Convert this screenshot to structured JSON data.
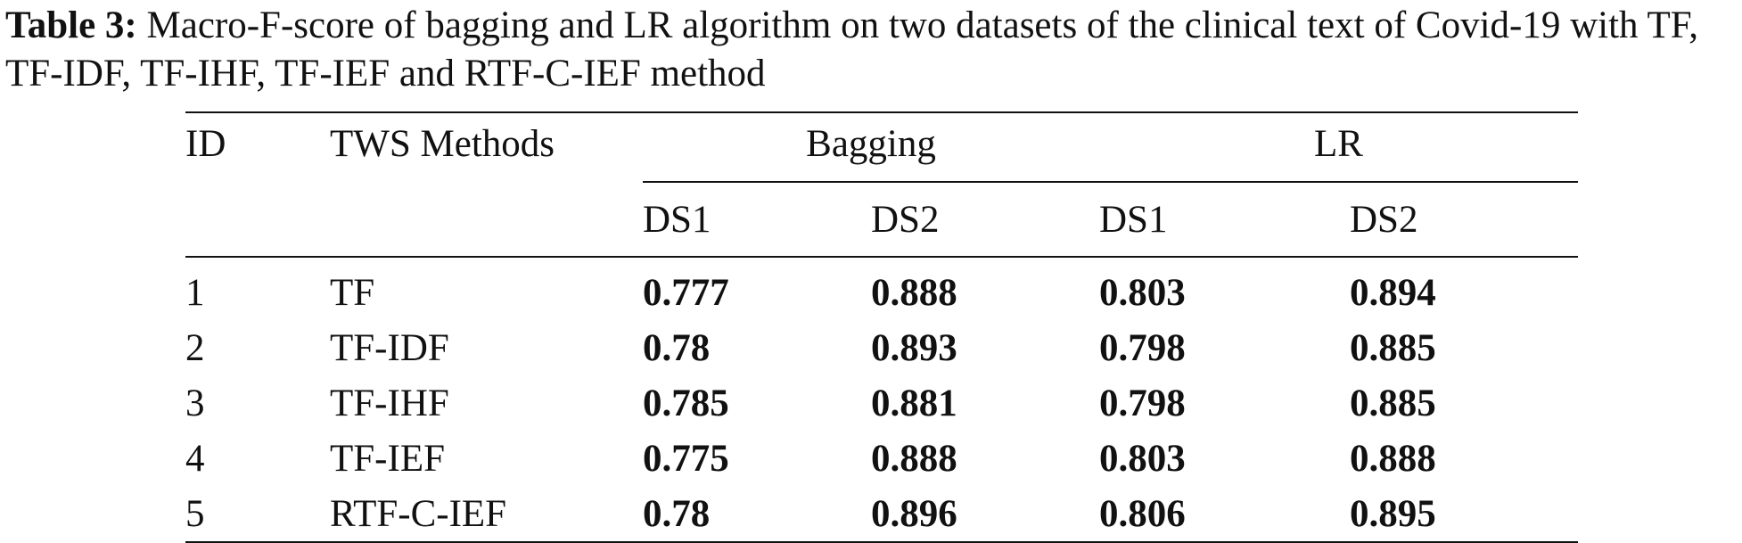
{
  "caption": {
    "label": "Table 3:",
    "text": " Macro-F-score of bagging and LR algorithm on two datasets of the clinical text of Covid-19 with TF, TF-IDF, TF-IHF, TF-IEF and RTF-C-IEF method"
  },
  "table": {
    "headers": {
      "id": "ID",
      "method": "TWS Methods",
      "group_bagging": "Bagging",
      "group_lr": "LR",
      "bagging_ds1": "DS1",
      "bagging_ds2": "DS2",
      "lr_ds1": "DS1",
      "lr_ds2": "DS2"
    },
    "rows": [
      {
        "id": "1",
        "method": "TF",
        "bagging_ds1": "0.777",
        "bagging_ds2": "0.888",
        "lr_ds1": "0.803",
        "lr_ds2": "0.894"
      },
      {
        "id": "2",
        "method": "TF-IDF",
        "bagging_ds1": "0.78",
        "bagging_ds2": "0.893",
        "lr_ds1": "0.798",
        "lr_ds2": "0.885"
      },
      {
        "id": "3",
        "method": "TF-IHF",
        "bagging_ds1": "0.785",
        "bagging_ds2": "0.881",
        "lr_ds1": "0.798",
        "lr_ds2": "0.885"
      },
      {
        "id": "4",
        "method": "TF-IEF",
        "bagging_ds1": "0.775",
        "bagging_ds2": "0.888",
        "lr_ds1": "0.803",
        "lr_ds2": "0.888"
      },
      {
        "id": "5",
        "method": "RTF-C-IEF",
        "bagging_ds1": "0.78",
        "bagging_ds2": "0.896",
        "lr_ds1": "0.806",
        "lr_ds2": "0.895"
      }
    ]
  }
}
